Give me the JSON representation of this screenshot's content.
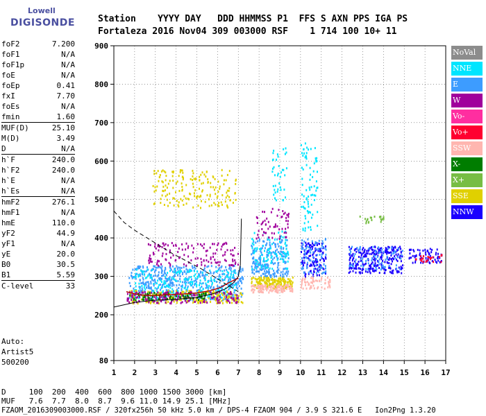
{
  "logo": {
    "line1": "Lowell",
    "line2": "DIGISONDE"
  },
  "header": {
    "row1": "Station    YYYY DAY   DDD HHMMSS P1  FFS S AXN PPS IGA PS",
    "row2": "Fortaleza 2016 Nov04 309 003000 RSF    1 714 100 10+ 11"
  },
  "params": [
    {
      "k": "foF2",
      "v": "7.200"
    },
    {
      "k": "foF1",
      "v": "N/A"
    },
    {
      "k": "foF1p",
      "v": "N/A"
    },
    {
      "k": "foE",
      "v": "N/A"
    },
    {
      "k": "foEp",
      "v": "0.41"
    },
    {
      "k": "fxI",
      "v": "7.70"
    },
    {
      "k": "foEs",
      "v": "N/A"
    },
    {
      "k": "fmin",
      "v": "1.60"
    },
    {
      "k": "MUF(D)",
      "v": "25.10"
    },
    {
      "k": "M(D)",
      "v": "3.49"
    },
    {
      "k": "D",
      "v": "N/A"
    },
    {
      "k": "h`F",
      "v": "240.0"
    },
    {
      "k": "h`F2",
      "v": "240.0"
    },
    {
      "k": "h`E",
      "v": "N/A"
    },
    {
      "k": "h`Es",
      "v": "N/A"
    },
    {
      "k": "hmF2",
      "v": "276.1"
    },
    {
      "k": "hmF1",
      "v": "N/A"
    },
    {
      "k": "hmE",
      "v": "110.0"
    },
    {
      "k": "yF2",
      "v": "44.9"
    },
    {
      "k": "yF1",
      "v": "N/A"
    },
    {
      "k": "yE",
      "v": "20.0"
    },
    {
      "k": "B0",
      "v": "30.5"
    },
    {
      "k": "B1",
      "v": "5.59"
    },
    {
      "k": "C-level",
      "v": "33"
    }
  ],
  "auto": {
    "line1": "Auto:",
    "line2": "Artist5",
    "line3": "500200"
  },
  "legend": [
    {
      "label": "NoVal",
      "color": "#8c8c8c"
    },
    {
      "label": "NNE",
      "color": "#00e5ff"
    },
    {
      "label": "E",
      "color": "#3d9cff"
    },
    {
      "label": "W",
      "color": "#a0009c"
    },
    {
      "label": "Vo-",
      "color": "#ff2ea0"
    },
    {
      "label": "Vo+",
      "color": "#ff0030"
    },
    {
      "label": "SSW",
      "color": "#ffb6b0"
    },
    {
      "label": "X-",
      "color": "#007d00"
    },
    {
      "label": "X+",
      "color": "#77bd44"
    },
    {
      "label": "SSE",
      "color": "#e0d000"
    },
    {
      "label": "NNW",
      "color": "#1a00ff"
    }
  ],
  "footer": {
    "d_row": "D     100  200  400  600  800 1000 1500 3000 [km]",
    "muf_row": "MUF   7.6  7.7  8.0  8.7  9.6 11.0 14.9 25.1 [MHz]",
    "file_row": "FZAOM_2016309003000.RSF / 320fx256h 50 kHz 5.0 km / DPS-4 FZAOM 904 / 3.9 S 321.6 E   Ion2Png 1.3.20"
  },
  "chart_data": {
    "type": "scatter",
    "xlim": [
      1,
      17
    ],
    "ylim": [
      80,
      900
    ],
    "x_ticks": [
      "1",
      "2",
      "3",
      "4",
      "5",
      "6",
      "7",
      "8",
      "9",
      "10",
      "11",
      "12",
      "13",
      "14",
      "15",
      "16",
      "17"
    ],
    "y_ticks": [
      "80",
      "200",
      "300",
      "400",
      "500",
      "600",
      "700",
      "800",
      "900"
    ],
    "grid": true,
    "clusters": [
      {
        "color": "#3d9cff",
        "x": [
          1.7,
          7.2
        ],
        "y": [
          240,
          330
        ],
        "n": 520
      },
      {
        "color": "#00e5ff",
        "x": [
          1.9,
          6.9
        ],
        "y": [
          245,
          320
        ],
        "n": 220
      },
      {
        "color": "#e0d000",
        "x": [
          1.7,
          7.2
        ],
        "y": [
          232,
          265
        ],
        "n": 220
      },
      {
        "color": "#a0009c",
        "x": [
          1.6,
          7.0
        ],
        "y": [
          232,
          262
        ],
        "n": 160
      },
      {
        "color": "#007d00",
        "x": [
          1.6,
          5.5
        ],
        "y": [
          240,
          260
        ],
        "n": 70
      },
      {
        "color": "#a0009c",
        "x": [
          2.6,
          7.0
        ],
        "y": [
          330,
          390
        ],
        "n": 140
      },
      {
        "color": "#e0d000",
        "x": [
          2.8,
          6.9
        ],
        "y": [
          480,
          580
        ],
        "n": 180
      },
      {
        "color": "#3d9cff",
        "x": [
          7.6,
          9.4
        ],
        "y": [
          300,
          400
        ],
        "n": 220
      },
      {
        "color": "#00e5ff",
        "x": [
          7.6,
          9.4
        ],
        "y": [
          320,
          420
        ],
        "n": 90
      },
      {
        "color": "#e0d000",
        "x": [
          7.6,
          9.6
        ],
        "y": [
          270,
          300
        ],
        "n": 160
      },
      {
        "color": "#ffb6b0",
        "x": [
          7.6,
          9.6
        ],
        "y": [
          260,
          280
        ],
        "n": 120
      },
      {
        "color": "#a0009c",
        "x": [
          7.8,
          9.4
        ],
        "y": [
          400,
          480
        ],
        "n": 60
      },
      {
        "color": "#00e5ff",
        "x": [
          8.6,
          9.3
        ],
        "y": [
          500,
          640
        ],
        "n": 40
      },
      {
        "color": "#1a00ff",
        "x": [
          10.0,
          11.2
        ],
        "y": [
          300,
          390
        ],
        "n": 130
      },
      {
        "color": "#3d9cff",
        "x": [
          10.0,
          11.2
        ],
        "y": [
          310,
          400
        ],
        "n": 80
      },
      {
        "color": "#00e5ff",
        "x": [
          10.0,
          10.8
        ],
        "y": [
          420,
          650
        ],
        "n": 80
      },
      {
        "color": "#ffb6b0",
        "x": [
          10.0,
          11.4
        ],
        "y": [
          270,
          300
        ],
        "n": 60
      },
      {
        "color": "#1a00ff",
        "x": [
          12.3,
          14.9
        ],
        "y": [
          310,
          380
        ],
        "n": 260
      },
      {
        "color": "#3d9cff",
        "x": [
          12.3,
          14.9
        ],
        "y": [
          320,
          380
        ],
        "n": 80
      },
      {
        "color": "#1a00ff",
        "x": [
          15.2,
          16.8
        ],
        "y": [
          335,
          375
        ],
        "n": 70
      },
      {
        "color": "#ff0030",
        "x": [
          15.5,
          16.8
        ],
        "y": [
          340,
          360
        ],
        "n": 24
      },
      {
        "color": "#77bd44",
        "x": [
          12.8,
          14.0
        ],
        "y": [
          440,
          460
        ],
        "n": 20
      }
    ]
  }
}
